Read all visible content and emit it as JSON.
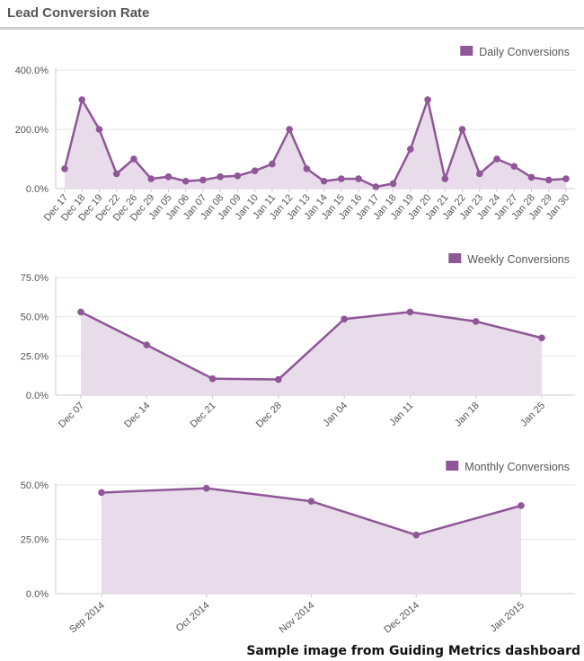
{
  "header": {
    "title": "Lead Conversion Rate"
  },
  "footer": {
    "note": "Sample image from Guiding Metrics dashboard"
  },
  "colors": {
    "series": "#8f5698",
    "fill": "#e9dcea",
    "grid": "#e6e6e6",
    "axis": "#cccccc",
    "text": "#555555"
  },
  "chart_data": [
    {
      "type": "area",
      "legend_position": "top-right",
      "grid": true,
      "ylim": [
        0,
        400
      ],
      "yticks": [
        "0.0%",
        "200.0%",
        "400.0%"
      ],
      "categories": [
        "Dec 17",
        "Dec 18",
        "Dec 19",
        "Dec 22",
        "Dec 26",
        "Dec 29",
        "Jan 05",
        "Jan 06",
        "Jan 07",
        "Jan 08",
        "Jan 09",
        "Jan 10",
        "Jan 11",
        "Jan 12",
        "Jan 13",
        "Jan 14",
        "Jan 15",
        "Jan 16",
        "Jan 17",
        "Jan 18",
        "Jan 19",
        "Jan 20",
        "Jan 21",
        "Jan 22",
        "Jan 23",
        "Jan 24",
        "Jan 27",
        "Jan 28",
        "Jan 29",
        "Jan 30"
      ],
      "series": [
        {
          "name": "Daily Conversions",
          "values": [
            67,
            300,
            200,
            50,
            100,
            33,
            40,
            25,
            29,
            40,
            43,
            60,
            83,
            200,
            67,
            25,
            33,
            33,
            6,
            17,
            133,
            300,
            33,
            200,
            50,
            100,
            75,
            38,
            29,
            33
          ]
        }
      ]
    },
    {
      "type": "area",
      "legend_position": "top-right",
      "grid": true,
      "ylim": [
        0,
        75
      ],
      "yticks": [
        "0.0%",
        "25.0%",
        "50.0%",
        "75.0%"
      ],
      "categories": [
        "Dec 07",
        "Dec 14",
        "Dec 21",
        "Dec 28",
        "Jan 04",
        "Jan 11",
        "Jan 18",
        "Jan 25"
      ],
      "series": [
        {
          "name": "Weekly Conversions",
          "values": [
            53,
            32,
            10.5,
            10,
            48.5,
            53,
            47,
            36.5
          ]
        }
      ]
    },
    {
      "type": "area",
      "legend_position": "top-right",
      "grid": true,
      "ylim": [
        0,
        50
      ],
      "yticks": [
        "0.0%",
        "25.0%",
        "50.0%"
      ],
      "categories": [
        "Sep 2014",
        "Oct 2014",
        "Nov 2014",
        "Dec 2014",
        "Jan 2015"
      ],
      "series": [
        {
          "name": "Monthly Conversions",
          "values": [
            46.5,
            48.5,
            42.5,
            27,
            40.5
          ]
        }
      ]
    }
  ]
}
